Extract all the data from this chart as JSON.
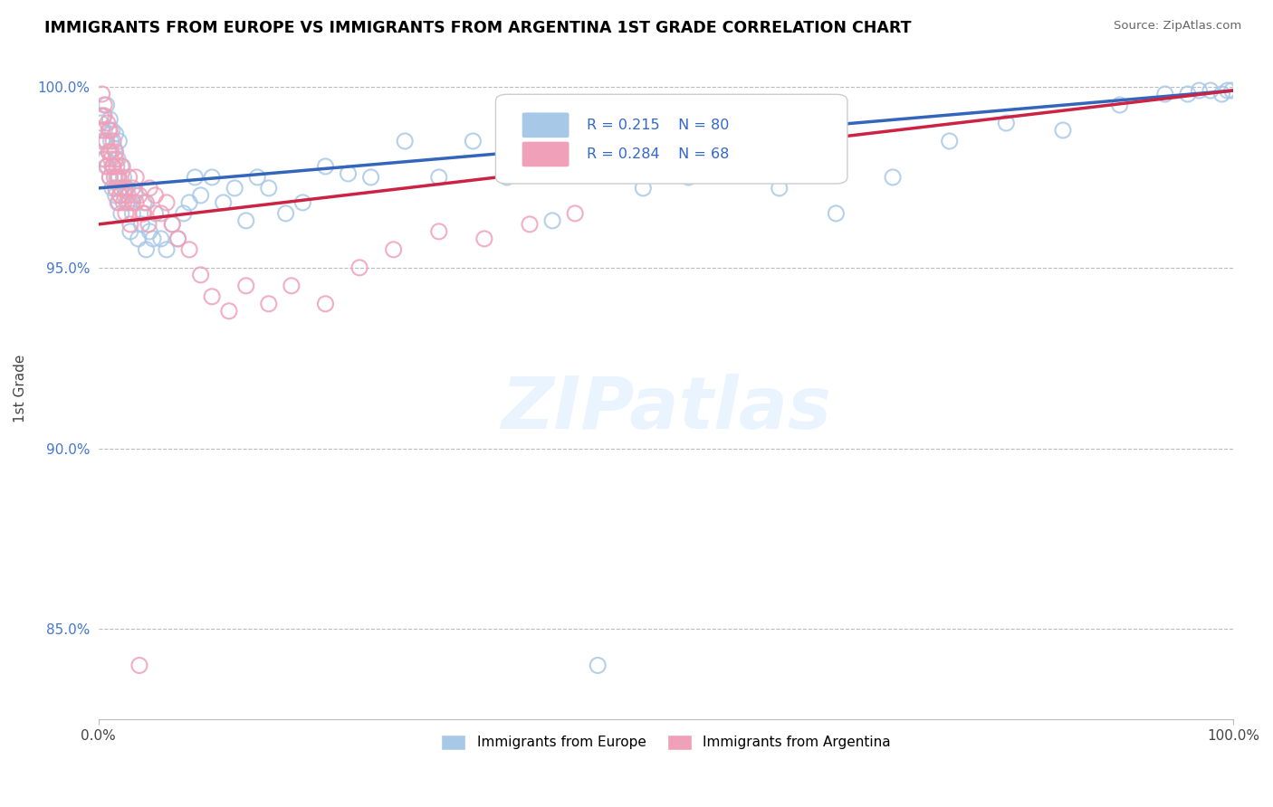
{
  "title": "IMMIGRANTS FROM EUROPE VS IMMIGRANTS FROM ARGENTINA 1ST GRADE CORRELATION CHART",
  "source": "Source: ZipAtlas.com",
  "ylabel": "1st Grade",
  "xlim": [
    0.0,
    1.0
  ],
  "ylim": [
    0.825,
    1.008
  ],
  "ytick_positions": [
    0.85,
    0.9,
    0.95,
    1.0
  ],
  "ytick_labels": [
    "85.0%",
    "90.0%",
    "95.0%",
    "100.0%"
  ],
  "legend_r_blue": "R = 0.215",
  "legend_n_blue": "N = 80",
  "legend_r_pink": "R = 0.284",
  "legend_n_pink": "N = 68",
  "legend_label_blue": "Immigrants from Europe",
  "legend_label_pink": "Immigrants from Argentina",
  "blue_color": "#a8c8e8",
  "pink_color": "#f0a0b8",
  "trend_blue_color": "#3366bb",
  "trend_pink_color": "#cc2244",
  "watermark": "ZIPatlas",
  "blue_scatter_x": [
    0.002,
    0.003,
    0.004,
    0.005,
    0.006,
    0.007,
    0.008,
    0.009,
    0.01,
    0.01,
    0.011,
    0.012,
    0.012,
    0.013,
    0.014,
    0.015,
    0.015,
    0.016,
    0.017,
    0.018,
    0.018,
    0.019,
    0.02,
    0.02,
    0.022,
    0.023,
    0.025,
    0.027,
    0.028,
    0.03,
    0.032,
    0.035,
    0.038,
    0.04,
    0.042,
    0.045,
    0.048,
    0.05,
    0.055,
    0.06,
    0.065,
    0.07,
    0.075,
    0.08,
    0.085,
    0.09,
    0.1,
    0.11,
    0.12,
    0.13,
    0.14,
    0.15,
    0.165,
    0.18,
    0.2,
    0.22,
    0.24,
    0.27,
    0.3,
    0.33,
    0.36,
    0.4,
    0.44,
    0.48,
    0.52,
    0.56,
    0.6,
    0.65,
    0.7,
    0.75,
    0.8,
    0.85,
    0.9,
    0.94,
    0.96,
    0.97,
    0.98,
    0.99,
    0.995,
    0.999
  ],
  "blue_scatter_y": [
    0.99,
    0.985,
    0.992,
    0.988,
    0.98,
    0.995,
    0.978,
    0.982,
    0.975,
    0.991,
    0.985,
    0.988,
    0.972,
    0.978,
    0.983,
    0.97,
    0.987,
    0.975,
    0.98,
    0.968,
    0.985,
    0.972,
    0.978,
    0.965,
    0.975,
    0.97,
    0.972,
    0.968,
    0.96,
    0.965,
    0.97,
    0.958,
    0.962,
    0.968,
    0.955,
    0.96,
    0.958,
    0.965,
    0.958,
    0.955,
    0.962,
    0.958,
    0.965,
    0.968,
    0.975,
    0.97,
    0.975,
    0.968,
    0.972,
    0.963,
    0.975,
    0.972,
    0.965,
    0.968,
    0.978,
    0.976,
    0.975,
    0.985,
    0.975,
    0.985,
    0.975,
    0.963,
    0.84,
    0.972,
    0.975,
    0.98,
    0.972,
    0.965,
    0.975,
    0.985,
    0.99,
    0.988,
    0.995,
    0.998,
    0.998,
    0.999,
    0.999,
    0.998,
    0.999,
    0.999
  ],
  "pink_scatter_x": [
    0.002,
    0.003,
    0.004,
    0.005,
    0.006,
    0.007,
    0.008,
    0.009,
    0.01,
    0.01,
    0.011,
    0.012,
    0.013,
    0.014,
    0.015,
    0.015,
    0.016,
    0.017,
    0.018,
    0.019,
    0.02,
    0.022,
    0.024,
    0.026,
    0.028,
    0.03,
    0.033,
    0.036,
    0.039,
    0.042,
    0.045,
    0.05,
    0.055,
    0.06,
    0.065,
    0.07,
    0.08,
    0.09,
    0.1,
    0.115,
    0.13,
    0.15,
    0.17,
    0.2,
    0.23,
    0.26,
    0.3,
    0.34,
    0.38,
    0.42,
    0.003,
    0.005,
    0.007,
    0.009,
    0.011,
    0.013,
    0.015,
    0.017,
    0.019,
    0.021,
    0.023,
    0.025,
    0.027,
    0.03,
    0.033,
    0.036,
    0.04,
    0.044
  ],
  "pink_scatter_y": [
    0.992,
    0.988,
    0.98,
    0.995,
    0.985,
    0.978,
    0.99,
    0.982,
    0.975,
    0.988,
    0.982,
    0.978,
    0.985,
    0.975,
    0.98,
    0.972,
    0.978,
    0.968,
    0.975,
    0.97,
    0.972,
    0.968,
    0.965,
    0.97,
    0.962,
    0.968,
    0.975,
    0.97,
    0.965,
    0.968,
    0.972,
    0.97,
    0.965,
    0.968,
    0.962,
    0.958,
    0.955,
    0.948,
    0.942,
    0.938,
    0.945,
    0.94,
    0.945,
    0.94,
    0.95,
    0.955,
    0.96,
    0.958,
    0.962,
    0.965,
    0.998,
    0.992,
    0.985,
    0.988,
    0.98,
    0.978,
    0.982,
    0.975,
    0.97,
    0.978,
    0.972,
    0.968,
    0.975,
    0.972,
    0.968,
    0.84,
    0.965,
    0.962
  ],
  "trend_blue_start_y": 0.972,
  "trend_blue_end_y": 0.999,
  "trend_pink_start_y": 0.962,
  "trend_pink_end_y": 0.999
}
